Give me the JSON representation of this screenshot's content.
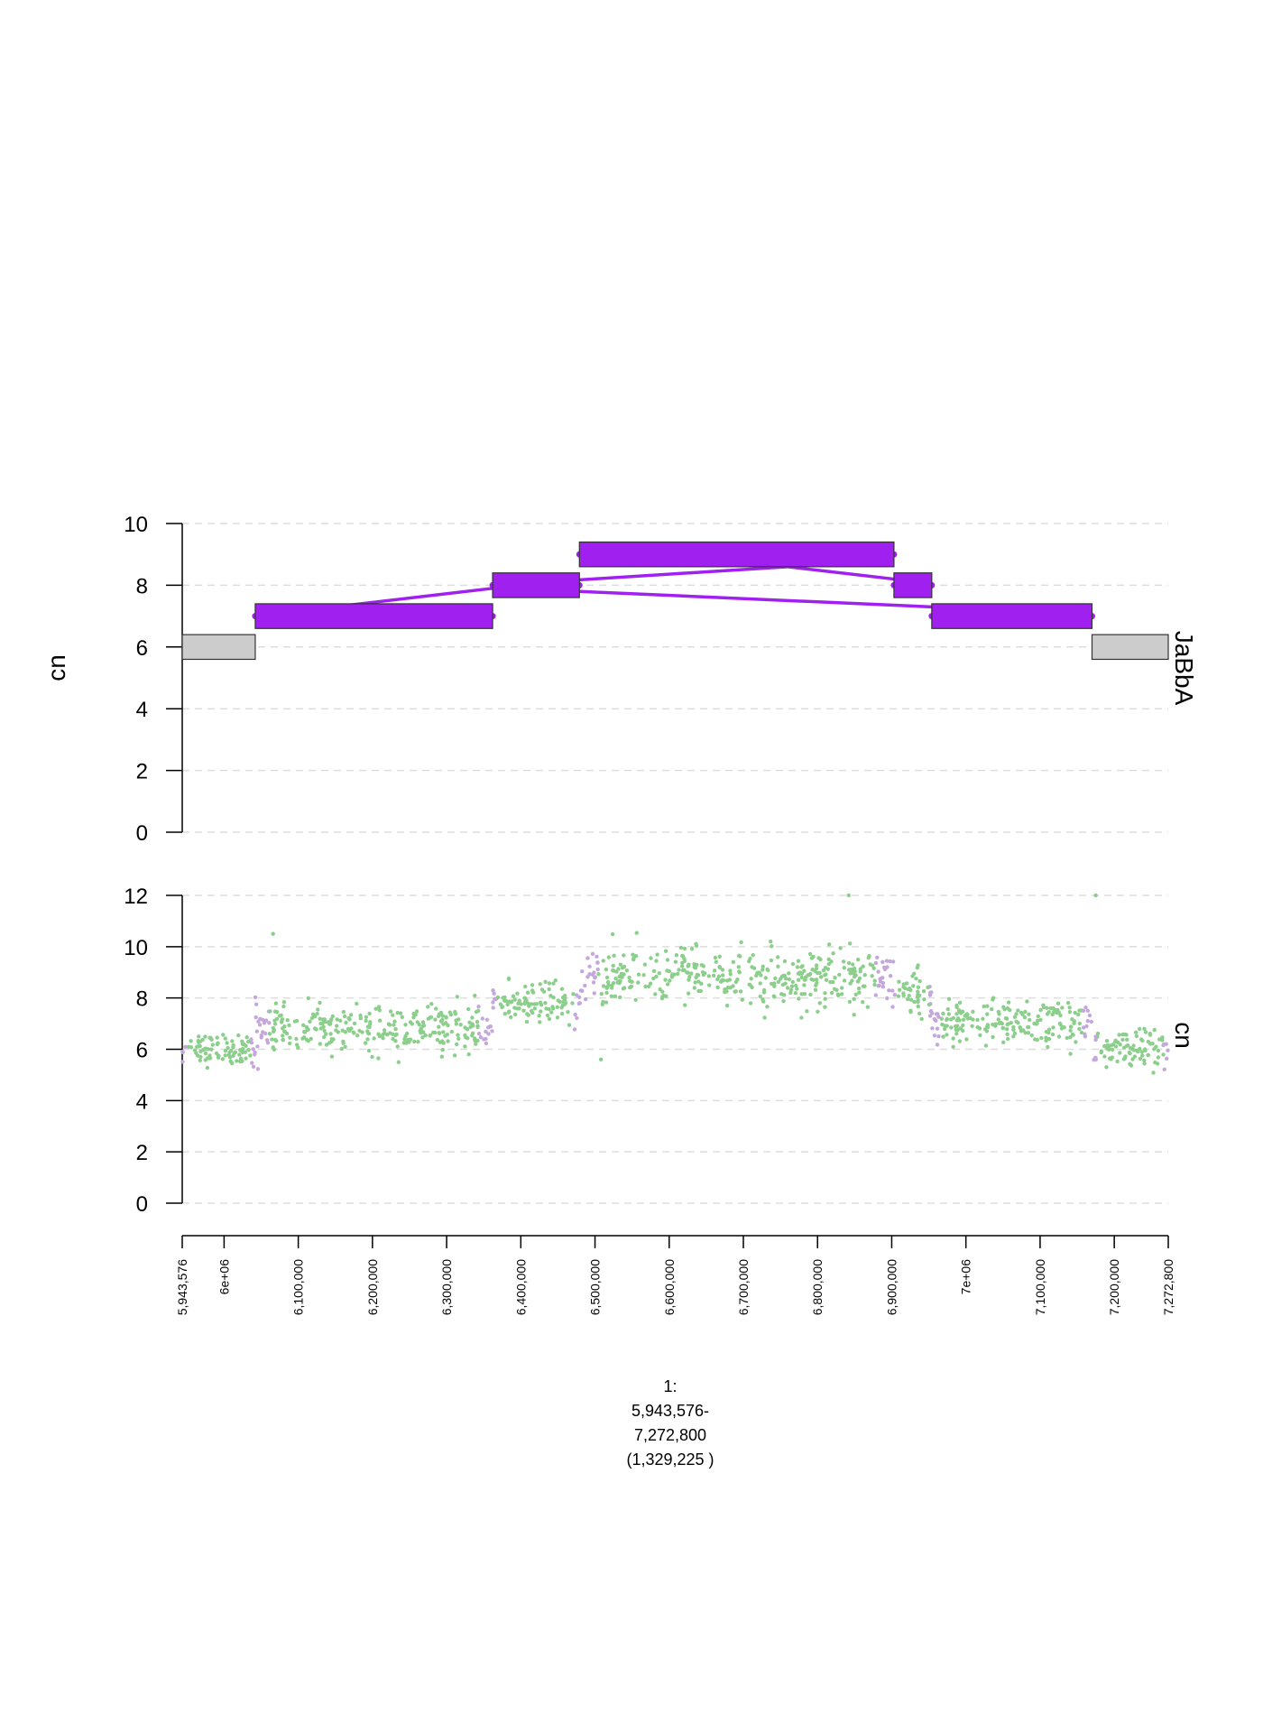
{
  "chart_data": [
    {
      "type": "gtrack_segments",
      "track_label": "JaBbA",
      "ylabel": "cn",
      "ylim": [
        0,
        10
      ],
      "yticks": [
        0,
        2,
        4,
        6,
        8,
        10
      ],
      "grid": true,
      "segments": [
        {
          "start": 5943576,
          "end": 6042000,
          "cn": 6,
          "color": "#CCCCCC"
        },
        {
          "start": 6042000,
          "end": 6362000,
          "cn": 7,
          "color": "#A020F0"
        },
        {
          "start": 6362000,
          "end": 6479000,
          "cn": 8,
          "color": "#A020F0"
        },
        {
          "start": 6479000,
          "end": 6903000,
          "cn": 9,
          "color": "#A020F0"
        },
        {
          "start": 6903000,
          "end": 6954000,
          "cn": 8,
          "color": "#A020F0"
        },
        {
          "start": 6954000,
          "end": 7170000,
          "cn": 7,
          "color": "#A020F0"
        },
        {
          "start": 7170000,
          "end": 7272800,
          "cn": 6,
          "color": "#CCCCCC"
        }
      ],
      "links": [
        {
          "x1": 6042000,
          "y1": 7,
          "x2": 6362000,
          "y2": 7.9,
          "color": "#A020F0"
        },
        {
          "x1": 6362000,
          "y1": 8.0,
          "x2": 6760000,
          "y2": 8.6,
          "color": "#A020F0"
        },
        {
          "x1": 6760000,
          "y1": 8.6,
          "x2": 6903000,
          "y2": 8.2,
          "color": "#A020F0"
        },
        {
          "x1": 6479000,
          "y1": 7.8,
          "x2": 6954000,
          "y2": 7.3,
          "color": "#A020F0"
        }
      ]
    },
    {
      "type": "scatter",
      "track_label": "cn",
      "ylim": [
        0,
        12
      ],
      "yticks": [
        0,
        2,
        4,
        6,
        8,
        10,
        12
      ],
      "grid": true,
      "point_color": "#8CCF8C",
      "edge_point_color": "#C4A8DC",
      "profile": [
        {
          "start": 5943576,
          "end": 6042000,
          "mean": 6.0,
          "sd": 0.3
        },
        {
          "start": 6042000,
          "end": 6362000,
          "mean": 6.8,
          "sd": 0.45
        },
        {
          "start": 6362000,
          "end": 6479000,
          "mean": 7.8,
          "sd": 0.4
        },
        {
          "start": 6479000,
          "end": 6903000,
          "mean": 8.8,
          "sd": 0.55
        },
        {
          "start": 6903000,
          "end": 6954000,
          "mean": 8.2,
          "sd": 0.45
        },
        {
          "start": 6954000,
          "end": 7170000,
          "mean": 7.0,
          "sd": 0.45
        },
        {
          "start": 7170000,
          "end": 7272800,
          "mean": 6.0,
          "sd": 0.35
        }
      ],
      "outliers": [
        {
          "x": 6066000,
          "y": 10.5
        },
        {
          "x": 6842000,
          "y": 12.0
        },
        {
          "x": 7175000,
          "y": 12.0
        },
        {
          "x": 6508000,
          "y": 5.6
        }
      ]
    }
  ],
  "xaxis": {
    "range": [
      5943576,
      7272800
    ],
    "ticks": [
      {
        "value": 5943576,
        "label": "5,943,576"
      },
      {
        "value": 6000000,
        "label": "6e+06"
      },
      {
        "value": 6100000,
        "label": "6,100,000"
      },
      {
        "value": 6200000,
        "label": "6,200,000"
      },
      {
        "value": 6300000,
        "label": "6,300,000"
      },
      {
        "value": 6400000,
        "label": "6,400,000"
      },
      {
        "value": 6500000,
        "label": "6,500,000"
      },
      {
        "value": 6600000,
        "label": "6,600,000"
      },
      {
        "value": 6700000,
        "label": "6,700,000"
      },
      {
        "value": 6800000,
        "label": "6,800,000"
      },
      {
        "value": 6900000,
        "label": "6,900,000"
      },
      {
        "value": 7000000,
        "label": "7e+06"
      },
      {
        "value": 7100000,
        "label": "7,100,000"
      },
      {
        "value": 7200000,
        "label": "7,200,000"
      },
      {
        "value": 7272800,
        "label": "7,272,800"
      }
    ]
  },
  "location_label": [
    "1:",
    "5,943,576-",
    "7,272,800",
    "(1,329,225 )"
  ]
}
